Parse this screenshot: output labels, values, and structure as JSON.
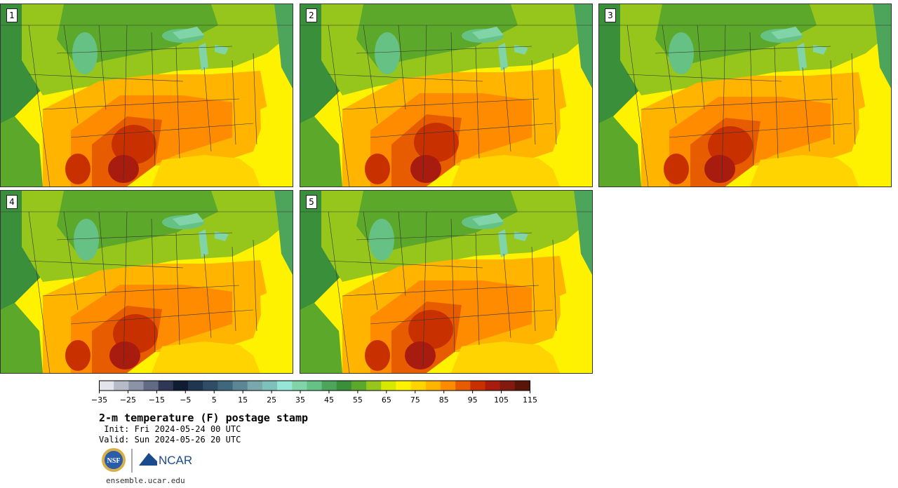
{
  "panels": [
    {
      "label": "1"
    },
    {
      "label": "2"
    },
    {
      "label": "3"
    },
    {
      "label": "4"
    },
    {
      "label": "5"
    }
  ],
  "colorbar": {
    "colors": [
      "#e3e3ea",
      "#b7bbc8",
      "#8d93a6",
      "#636a84",
      "#2f3656",
      "#101c32",
      "#1f3550",
      "#2f4d66",
      "#41677c",
      "#5b8693",
      "#78a8ac",
      "#7ec1bb",
      "#95e6d6",
      "#80d4a8",
      "#66c184",
      "#4ca55a",
      "#3a8f3a",
      "#5ca82a",
      "#96c61c",
      "#d6e800",
      "#fff200",
      "#ffd400",
      "#ffb400",
      "#ff8c00",
      "#e85c00",
      "#c83000",
      "#a81c10",
      "#821a10",
      "#5a1408"
    ],
    "ticks": [
      "−35",
      "−25",
      "−15",
      "−5",
      "5",
      "15",
      "25",
      "35",
      "45",
      "55",
      "65",
      "75",
      "85",
      "95",
      "105",
      "115"
    ]
  },
  "title": "2-m temperature (F) postage stamp",
  "init": " Init: Fri 2024-05-24 00 UTC",
  "valid": "Valid: Sun 2024-05-26 20 UTC",
  "logos": {
    "nsf": "NSF",
    "ncar": "NCAR"
  },
  "url": "ensemble.ucar.edu"
}
